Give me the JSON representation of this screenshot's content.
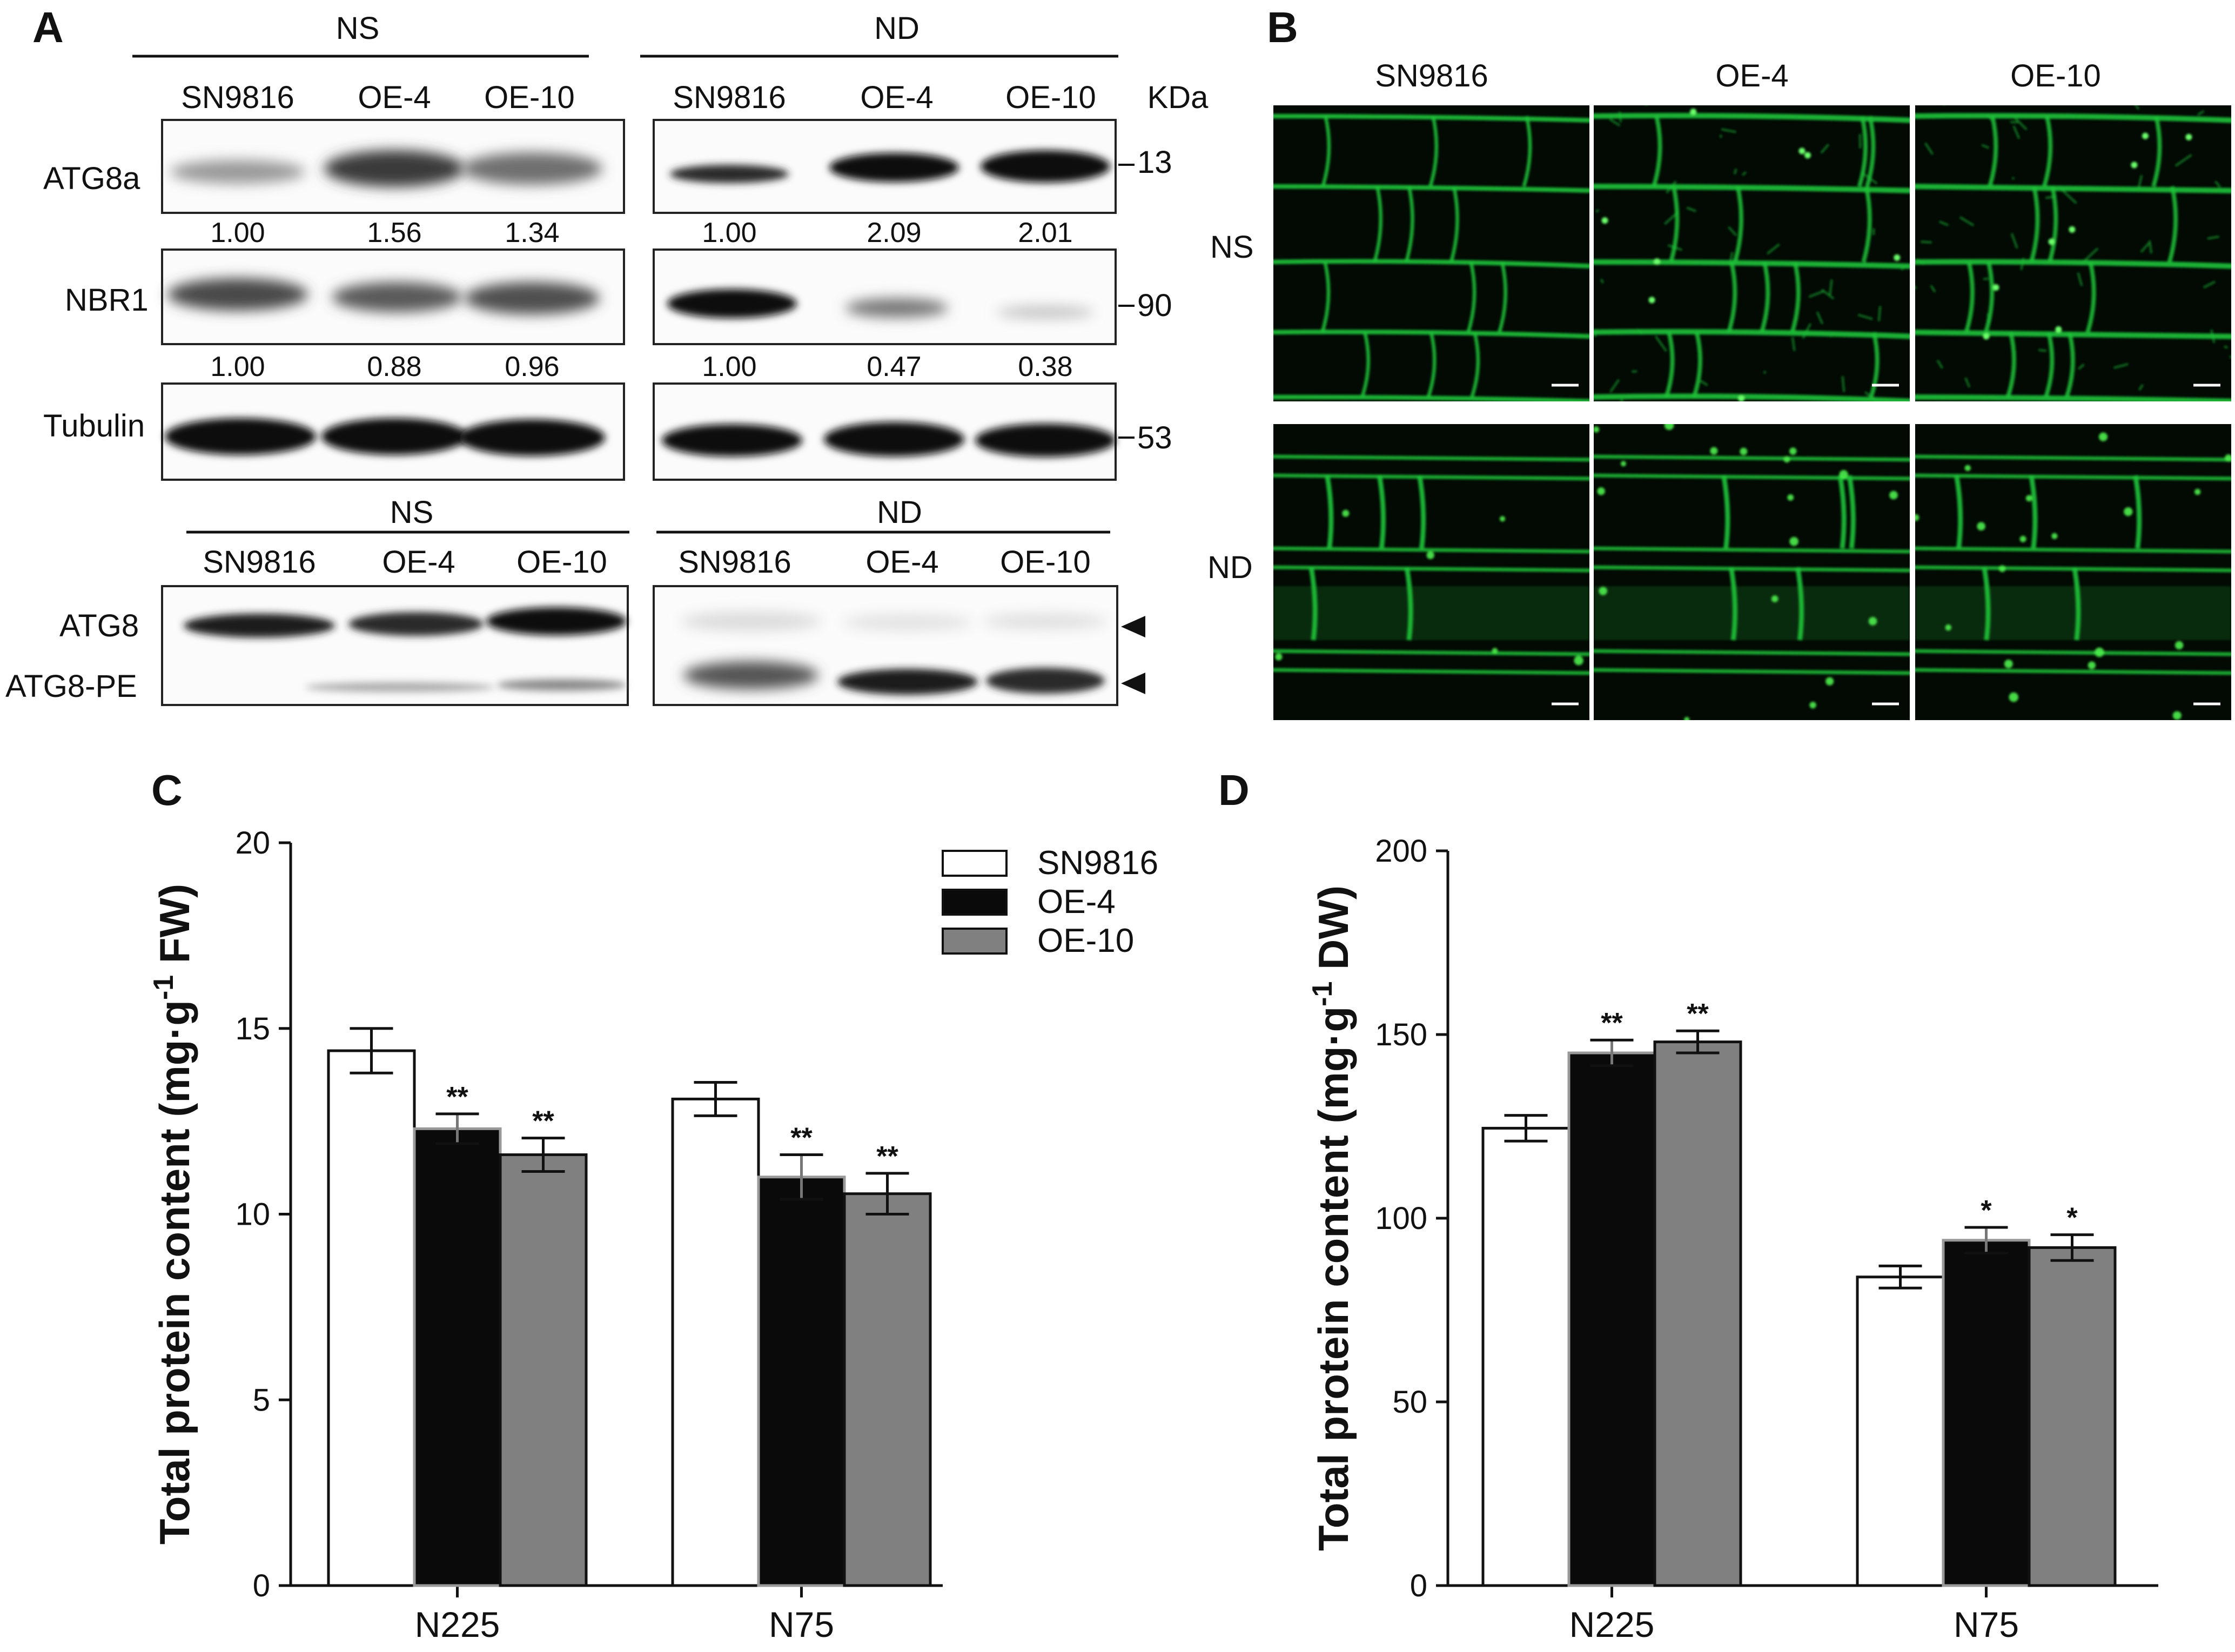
{
  "panels": {
    "A": "A",
    "B": "B",
    "C": "C",
    "D": "D"
  },
  "western": {
    "top_groups": [
      "NS",
      "ND"
    ],
    "lanes": [
      "SN9816",
      "OE-4",
      "OE-10"
    ],
    "kda_header": "KDa",
    "rows": [
      {
        "label": "ATG8a",
        "kda": "13",
        "ns_quant": [
          "1.00",
          "1.56",
          "1.34"
        ],
        "nd_quant": [
          "1.00",
          "2.09",
          "2.01"
        ]
      },
      {
        "label": "NBR1",
        "kda": "90",
        "ns_quant": [
          "1.00",
          "0.88",
          "0.96"
        ],
        "nd_quant": [
          "1.00",
          "0.47",
          "0.38"
        ]
      },
      {
        "label": "Tubulin",
        "kda": "53"
      }
    ],
    "bottom_groups": [
      "NS",
      "ND"
    ],
    "bottom_labels": [
      "ATG8",
      "ATG8-PE"
    ]
  },
  "micro": {
    "col_labels": [
      "SN9816",
      "OE-4",
      "OE-10"
    ],
    "row_labels": [
      "NS",
      "ND"
    ],
    "green": "#1fc43a"
  },
  "legend": [
    "SN9816",
    "OE-4",
    "OE-10"
  ],
  "colors": {
    "SN9816": "#ffffff",
    "OE-4": "#0a0a0a",
    "OE-10": "#808080"
  },
  "chart_data": [
    {
      "panel": "C",
      "type": "bar",
      "ylabel": "Total protein content (mg·g-1 FW)",
      "ylabel_parts": [
        "Total protein content (mg·g",
        "-1",
        " FW)"
      ],
      "categories": [
        "N225",
        "N75"
      ],
      "ylim": [
        0,
        20
      ],
      "yticks": [
        0,
        5,
        10,
        15,
        20
      ],
      "series": [
        {
          "name": "SN9816",
          "values": [
            14.4,
            13.1
          ],
          "errors": [
            0.6,
            0.45
          ],
          "sig": [
            "",
            ""
          ]
        },
        {
          "name": "OE-4",
          "values": [
            12.3,
            11.0
          ],
          "errors": [
            0.4,
            0.6
          ],
          "sig": [
            "**",
            "**"
          ]
        },
        {
          "name": "OE-10",
          "values": [
            11.6,
            10.55
          ],
          "errors": [
            0.45,
            0.55
          ],
          "sig": [
            "**",
            "**"
          ]
        }
      ]
    },
    {
      "panel": "D",
      "type": "bar",
      "ylabel": "Total protein content (mg·g-1 DW)",
      "ylabel_parts": [
        "Total protein content (mg·g",
        "-1",
        " DW)"
      ],
      "categories": [
        "N225",
        "N75"
      ],
      "ylim": [
        0,
        200
      ],
      "yticks": [
        0,
        50,
        100,
        150,
        200
      ],
      "series": [
        {
          "name": "",
          "values": [
            124.5,
            84.0
          ],
          "errors": [
            3.5,
            3.0
          ],
          "sig": [
            "",
            ""
          ]
        },
        {
          "name": "",
          "values": [
            145.0,
            94.0
          ],
          "errors": [
            3.5,
            3.5
          ],
          "sig": [
            "**",
            "*"
          ]
        },
        {
          "name": "",
          "values": [
            148.0,
            92.0
          ],
          "errors": [
            3.0,
            3.5
          ],
          "sig": [
            "**",
            "*"
          ]
        }
      ]
    }
  ]
}
